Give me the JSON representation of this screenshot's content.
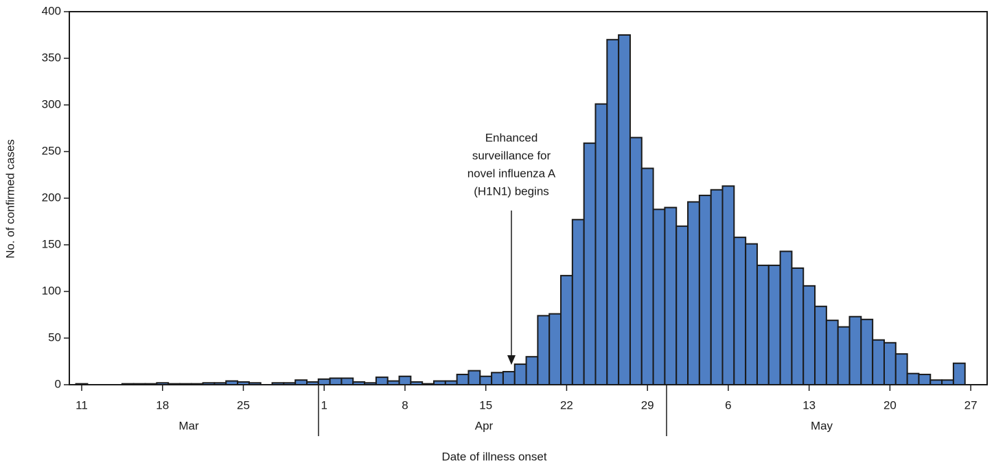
{
  "chart_data": {
    "type": "bar",
    "categories": [
      "11",
      null,
      null,
      null,
      null,
      null,
      null,
      "18",
      null,
      null,
      null,
      null,
      null,
      null,
      "25",
      null,
      null,
      null,
      null,
      null,
      null,
      "1",
      null,
      null,
      null,
      null,
      null,
      null,
      "8",
      null,
      null,
      null,
      null,
      null,
      null,
      "15",
      null,
      null,
      null,
      null,
      null,
      null,
      "22",
      null,
      null,
      null,
      null,
      null,
      null,
      "29",
      null,
      null,
      null,
      null,
      null,
      null,
      "6",
      null,
      null,
      null,
      null,
      null,
      null,
      "13",
      null,
      null,
      null,
      null,
      null,
      null,
      "20",
      null,
      null,
      null,
      null,
      null,
      null,
      "27"
    ],
    "values": [
      1,
      0,
      0,
      0,
      1,
      1,
      1,
      2,
      1,
      1,
      1,
      2,
      2,
      4,
      3,
      2,
      0,
      2,
      2,
      5,
      3,
      6,
      7,
      7,
      3,
      2,
      8,
      4,
      9,
      3,
      1,
      4,
      4,
      11,
      15,
      9,
      13,
      14,
      22,
      30,
      74,
      76,
      117,
      177,
      259,
      301,
      370,
      375,
      265,
      232,
      188,
      190,
      170,
      196,
      203,
      209,
      213,
      158,
      151,
      128,
      128,
      143,
      125,
      106,
      84,
      69,
      62,
      73,
      70,
      48,
      45,
      33,
      12,
      11,
      5,
      5,
      23,
      null
    ],
    "months": [
      "Mar",
      "Apr",
      "May"
    ],
    "color": "#4f7fc4",
    "ylim": [
      0,
      400
    ],
    "yticks": [
      0,
      50,
      100,
      150,
      200,
      250,
      300,
      350,
      400
    ],
    "x_label": "Date of illness onset",
    "y_label": "No. of confirmed cases",
    "annotation": [
      "Enhanced",
      "surveillance for",
      "novel influenza A",
      "(H1N1) begins"
    ]
  }
}
